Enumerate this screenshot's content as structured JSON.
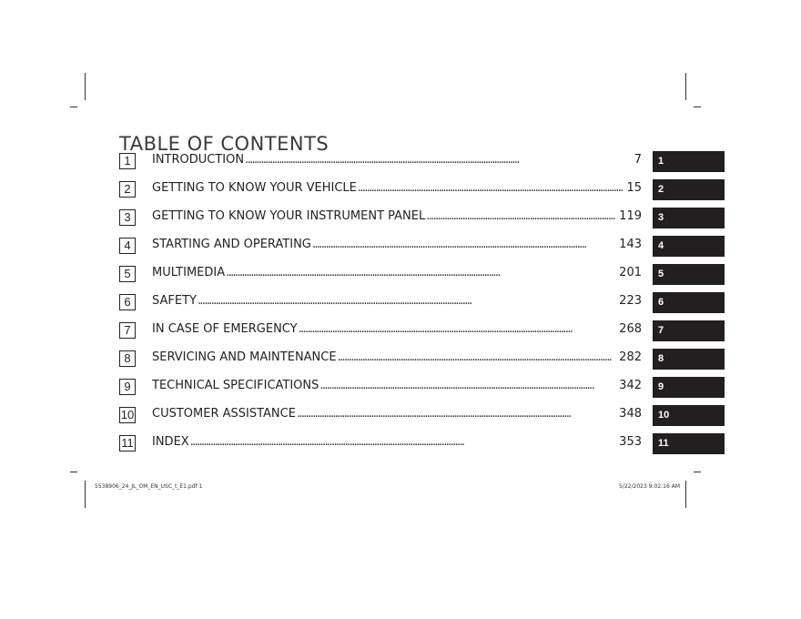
{
  "title": "TABLE OF CONTENTS",
  "entries": [
    {
      "num": "1",
      "label": "INTRODUCTION",
      "page": "7",
      "tab": "1"
    },
    {
      "num": "2",
      "label": "GETTING TO KNOW YOUR VEHICLE",
      "page": "15",
      "tab": "2"
    },
    {
      "num": "3",
      "label": "GETTING TO KNOW YOUR INSTRUMENT PANEL",
      "page": "119",
      "tab": "3"
    },
    {
      "num": "4",
      "label": "STARTING AND OPERATING",
      "page": "143",
      "tab": "4"
    },
    {
      "num": "5",
      "label": "MULTIMEDIA",
      "page": "201",
      "tab": "5"
    },
    {
      "num": "6",
      "label": "SAFETY",
      "page": "223",
      "tab": "6"
    },
    {
      "num": "7",
      "label": "IN CASE OF EMERGENCY",
      "page": "268",
      "tab": "7"
    },
    {
      "num": "8",
      "label": "SERVICING AND MAINTENANCE",
      "page": "282",
      "tab": "8"
    },
    {
      "num": "9",
      "label": "TECHNICAL SPECIFICATIONS",
      "page": "342",
      "tab": "9"
    },
    {
      "num": "10",
      "label": "CUSTOMER ASSISTANCE",
      "page": "348",
      "tab": "10"
    },
    {
      "num": "11",
      "label": "INDEX",
      "page": "353",
      "tab": "11"
    }
  ],
  "footer": {
    "file": "5538906_24_JL_OM_EN_USC_t_E1.pdf  1",
    "datetime": "5/22/2023   9:02:16 AM"
  },
  "colors": {
    "tab_bg": "#231f20",
    "tab_text": "#ffffff"
  }
}
